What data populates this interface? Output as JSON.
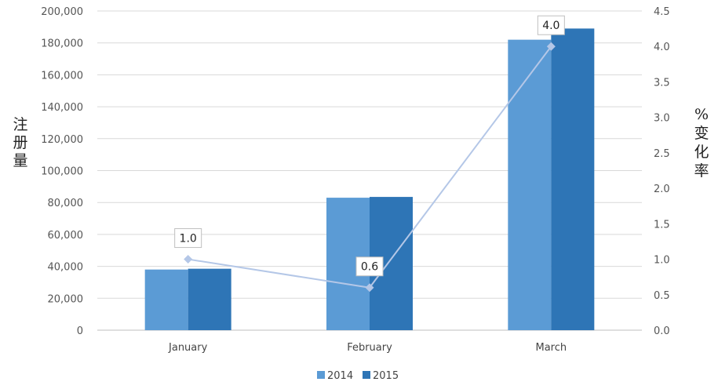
{
  "chart_data": {
    "type": "bar",
    "categories": [
      "January",
      "February",
      "March"
    ],
    "series": [
      {
        "name": "2014",
        "values": [
          38000,
          83000,
          182000
        ],
        "color": "#5b9bd5"
      },
      {
        "name": "2015",
        "values": [
          38500,
          83500,
          189000
        ],
        "color": "#2e75b6"
      }
    ],
    "line_series": {
      "values": [
        1.0,
        0.6,
        4.0
      ],
      "labels": [
        "1.0",
        "0.6",
        "4.0"
      ],
      "color": "#b4c7e7",
      "axis": "secondary"
    },
    "ylim": [
      0,
      200000
    ],
    "y_ticks": [
      "0",
      "20,000",
      "40,000",
      "60,000",
      "80,000",
      "100,000",
      "120,000",
      "140,000",
      "160,000",
      "180,000",
      "200,000"
    ],
    "y2lim": [
      0,
      4.5
    ],
    "y2_ticks": [
      "0.0",
      "0.5",
      "1.0",
      "1.5",
      "2.0",
      "2.5",
      "3.0",
      "3.5",
      "4.0",
      "4.5"
    ],
    "ylabel": "注册量",
    "y2label": "% 变化率",
    "legend_position": "bottom",
    "grid": true
  }
}
